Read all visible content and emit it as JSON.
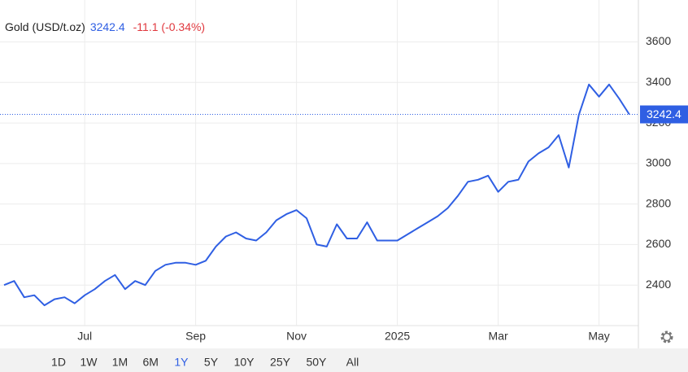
{
  "chart_data": {
    "type": "line",
    "title": "Gold (USD/t.oz)",
    "change": "-11.1 (-0.34%)",
    "categories": [
      null,
      null,
      null,
      null,
      null,
      null,
      null,
      null,
      "Jul",
      null,
      null,
      null,
      null,
      null,
      null,
      null,
      null,
      null,
      null,
      "Sep",
      null,
      null,
      null,
      null,
      null,
      null,
      null,
      null,
      null,
      "Nov",
      null,
      null,
      null,
      null,
      null,
      null,
      null,
      null,
      null,
      "2025",
      null,
      null,
      null,
      null,
      null,
      null,
      null,
      null,
      null,
      "Mar",
      null,
      null,
      null,
      null,
      null,
      null,
      null,
      null,
      null,
      "May",
      null,
      null,
      null
    ],
    "series": [
      {
        "name": "Gold",
        "color": "#2f5fe3",
        "values": [
          2400,
          2420,
          2340,
          2350,
          2300,
          2330,
          2340,
          2310,
          2350,
          2380,
          2420,
          2450,
          2380,
          2420,
          2400,
          2470,
          2500,
          2510,
          2510,
          2500,
          2520,
          2590,
          2640,
          2660,
          2630,
          2620,
          2660,
          2720,
          2750,
          2770,
          2730,
          2600,
          2590,
          2700,
          2630,
          2630,
          2710,
          2620,
          2620,
          2620,
          2650,
          2680,
          2710,
          2740,
          2780,
          2840,
          2910,
          2920,
          2940,
          2860,
          2910,
          2920,
          3010,
          3050,
          3080,
          3140,
          2980,
          3240,
          3390,
          3330,
          3390,
          3320,
          3242.4
        ]
      }
    ],
    "ylim": [
      2200,
      3807
    ],
    "yticks": [
      2400,
      2600,
      2800,
      3000,
      3200,
      3400,
      3600
    ],
    "grid": true,
    "ranges": [
      "1D",
      "1W",
      "1M",
      "6M",
      "1Y",
      "5Y",
      "10Y",
      "25Y",
      "50Y",
      "All"
    ],
    "selected_range": 4
  }
}
